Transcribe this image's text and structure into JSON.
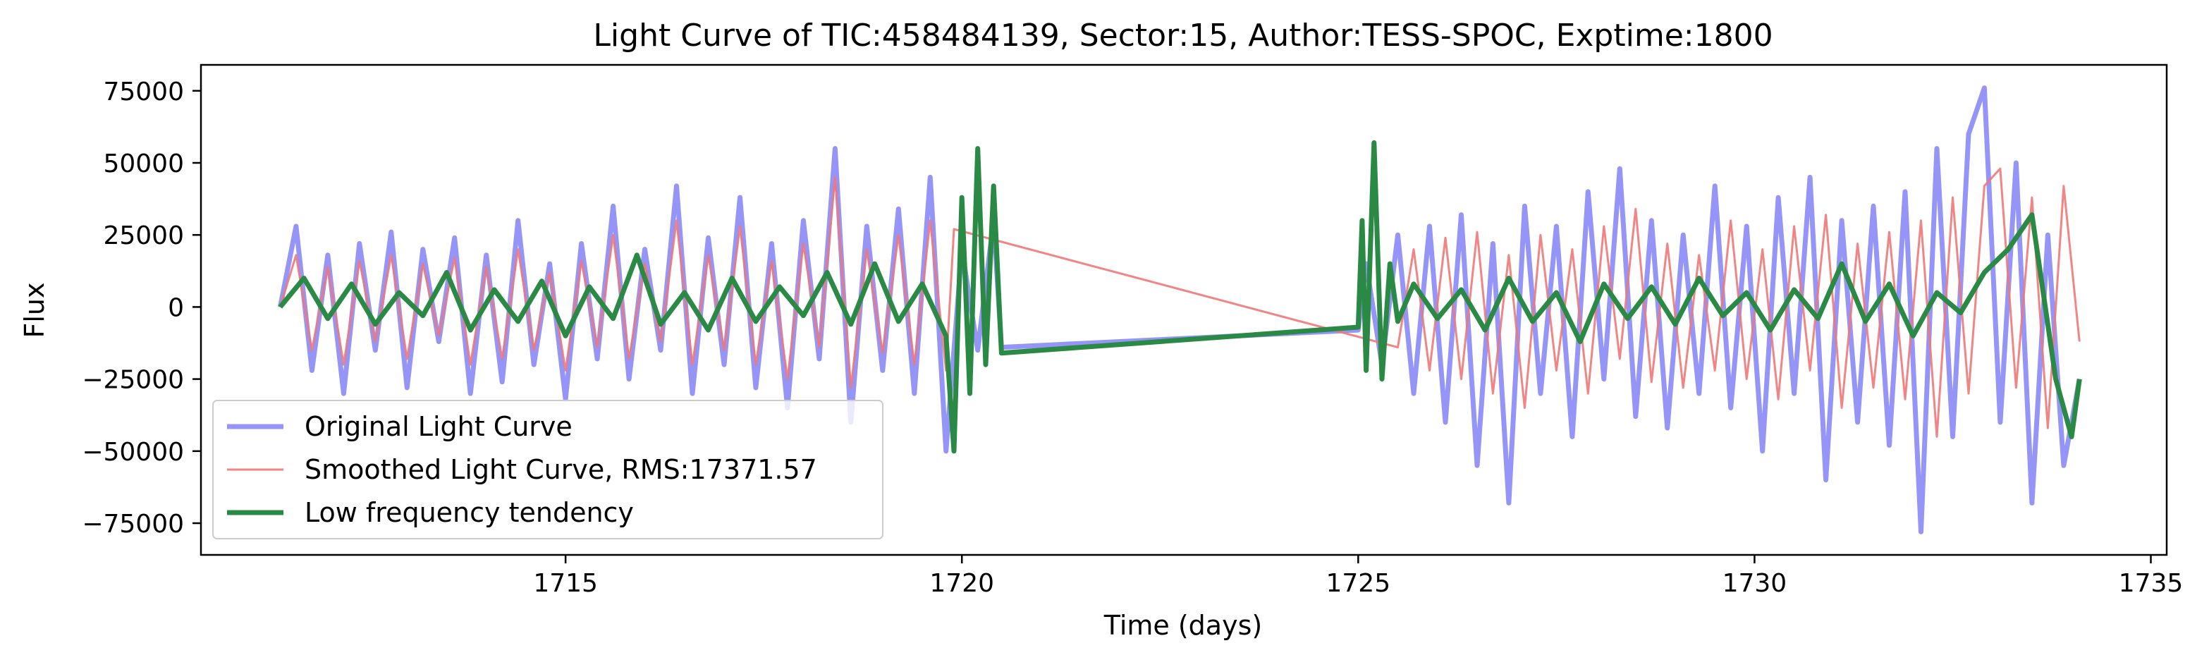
{
  "chart_data": {
    "type": "line",
    "title": "Light Curve of TIC:458484139, Sector:15, Author:TESS-SPOC, Exptime:1800",
    "xlabel": "Time (days)",
    "ylabel": "Flux",
    "xlim": [
      1710.4,
      1735.2
    ],
    "ylim": [
      -86000,
      84000
    ],
    "xticks": [
      1715,
      1720,
      1725,
      1730,
      1735
    ],
    "yticks": [
      -75000,
      -50000,
      -25000,
      0,
      25000,
      50000,
      75000
    ],
    "grid": false,
    "legend_position": "lower-left",
    "series": [
      {
        "name": "Original Light Curve",
        "color": "#7b7bf5",
        "x": [
          1711.4,
          1711.6,
          1711.8,
          1712.0,
          1712.2,
          1712.4,
          1712.6,
          1712.8,
          1713.0,
          1713.2,
          1713.4,
          1713.6,
          1713.8,
          1714.0,
          1714.2,
          1714.4,
          1714.6,
          1714.8,
          1715.0,
          1715.2,
          1715.4,
          1715.6,
          1715.8,
          1716.0,
          1716.2,
          1716.4,
          1716.6,
          1716.8,
          1717.0,
          1717.2,
          1717.4,
          1717.6,
          1717.8,
          1718.0,
          1718.2,
          1718.4,
          1718.6,
          1718.8,
          1719.0,
          1719.2,
          1719.4,
          1719.6,
          1719.8,
          1720.0,
          1720.2,
          1720.4,
          1720.5,
          1725.0,
          1725.1,
          1725.3,
          1725.5,
          1725.7,
          1725.9,
          1726.1,
          1726.3,
          1726.5,
          1726.7,
          1726.9,
          1727.1,
          1727.3,
          1727.5,
          1727.7,
          1727.9,
          1728.1,
          1728.3,
          1728.5,
          1728.7,
          1728.9,
          1729.1,
          1729.3,
          1729.5,
          1729.7,
          1729.9,
          1730.1,
          1730.3,
          1730.5,
          1730.7,
          1730.9,
          1731.1,
          1731.3,
          1731.5,
          1731.7,
          1731.9,
          1732.1,
          1732.3,
          1732.5,
          1732.7,
          1732.9,
          1733.1,
          1733.3,
          1733.5,
          1733.7,
          1733.9,
          1734.1
        ],
        "y": [
          0,
          28000,
          -22000,
          18000,
          -30000,
          22000,
          -15000,
          26000,
          -28000,
          20000,
          -12000,
          24000,
          -30000,
          18000,
          -26000,
          30000,
          -20000,
          15000,
          -32000,
          22000,
          -18000,
          35000,
          -25000,
          20000,
          -15000,
          42000,
          -30000,
          24000,
          -20000,
          38000,
          -28000,
          22000,
          -35000,
          30000,
          -18000,
          55000,
          -40000,
          28000,
          -22000,
          34000,
          -30000,
          45000,
          -50000,
          20000,
          -15000,
          30000,
          -14000,
          -8000,
          15000,
          -20000,
          25000,
          -30000,
          28000,
          -40000,
          32000,
          -55000,
          22000,
          -68000,
          35000,
          -30000,
          28000,
          -45000,
          40000,
          -25000,
          48000,
          -38000,
          30000,
          -42000,
          25000,
          -30000,
          42000,
          -35000,
          28000,
          -50000,
          38000,
          -30000,
          45000,
          -60000,
          30000,
          -40000,
          35000,
          -48000,
          40000,
          -78000,
          55000,
          -45000,
          60000,
          76000,
          -40000,
          50000,
          -68000,
          25000,
          -55000,
          -25000
        ]
      },
      {
        "name": "Smoothed Light Curve, RMS:17371.57",
        "color": "#f07878",
        "x": [
          1711.4,
          1711.6,
          1711.8,
          1712.0,
          1712.2,
          1712.4,
          1712.6,
          1712.8,
          1713.0,
          1713.2,
          1713.4,
          1713.6,
          1713.8,
          1714.0,
          1714.2,
          1714.4,
          1714.6,
          1714.8,
          1715.0,
          1715.2,
          1715.4,
          1715.6,
          1715.8,
          1716.0,
          1716.2,
          1716.4,
          1716.6,
          1716.8,
          1717.0,
          1717.2,
          1717.4,
          1717.6,
          1717.8,
          1718.0,
          1718.2,
          1718.4,
          1718.6,
          1718.8,
          1719.0,
          1719.2,
          1719.4,
          1719.6,
          1719.8,
          1719.9,
          1725.5,
          1725.7,
          1725.9,
          1726.1,
          1726.3,
          1726.5,
          1726.7,
          1726.9,
          1727.1,
          1727.3,
          1727.5,
          1727.7,
          1727.9,
          1728.1,
          1728.3,
          1728.5,
          1728.7,
          1728.9,
          1729.1,
          1729.3,
          1729.5,
          1729.7,
          1729.9,
          1730.1,
          1730.3,
          1730.5,
          1730.7,
          1730.9,
          1731.1,
          1731.3,
          1731.5,
          1731.7,
          1731.9,
          1732.1,
          1732.3,
          1732.5,
          1732.7,
          1732.9,
          1733.1,
          1733.3,
          1733.5,
          1733.7,
          1733.9,
          1734.1
        ],
        "y": [
          0,
          18000,
          -15000,
          14000,
          -20000,
          16000,
          -12000,
          18000,
          -18000,
          15000,
          -10000,
          17000,
          -20000,
          14000,
          -18000,
          20000,
          -15000,
          12000,
          -22000,
          16000,
          -14000,
          25000,
          -18000,
          15000,
          -12000,
          30000,
          -20000,
          18000,
          -15000,
          28000,
          -20000,
          16000,
          -25000,
          22000,
          -14000,
          45000,
          -28000,
          20000,
          -16000,
          25000,
          -20000,
          30000,
          -22000,
          27000,
          -14000,
          20000,
          -22000,
          24000,
          -25000,
          26000,
          -30000,
          18000,
          -35000,
          25000,
          -22000,
          20000,
          -30000,
          28000,
          -18000,
          34000,
          -26000,
          22000,
          -28000,
          18000,
          -22000,
          30000,
          -25000,
          20000,
          -32000,
          28000,
          -22000,
          32000,
          -35000,
          22000,
          -28000,
          26000,
          -32000,
          30000,
          -45000,
          38000,
          -30000,
          42000,
          48000,
          -28000,
          38000,
          -42000,
          42000,
          -12000
        ]
      },
      {
        "name": "Low frequency tendency",
        "color": "#2a8a45",
        "x": [
          1711.4,
          1711.7,
          1712.0,
          1712.3,
          1712.6,
          1712.9,
          1713.2,
          1713.5,
          1713.8,
          1714.1,
          1714.4,
          1714.7,
          1715.0,
          1715.3,
          1715.6,
          1715.9,
          1716.2,
          1716.5,
          1716.8,
          1717.1,
          1717.4,
          1717.7,
          1718.0,
          1718.3,
          1718.6,
          1718.9,
          1719.2,
          1719.5,
          1719.8,
          1719.9,
          1720.0,
          1720.1,
          1720.2,
          1720.3,
          1720.4,
          1720.5,
          1725.0,
          1725.05,
          1725.1,
          1725.2,
          1725.3,
          1725.4,
          1725.5,
          1725.7,
          1726.0,
          1726.3,
          1726.6,
          1726.9,
          1727.2,
          1727.5,
          1727.8,
          1728.1,
          1728.4,
          1728.7,
          1729.0,
          1729.3,
          1729.6,
          1729.9,
          1730.2,
          1730.5,
          1730.8,
          1731.1,
          1731.4,
          1731.7,
          1732.0,
          1732.3,
          1732.6,
          1732.9,
          1733.2,
          1733.5,
          1733.8,
          1734.0,
          1734.1
        ],
        "y": [
          0,
          10000,
          -4000,
          8000,
          -6000,
          5000,
          -3000,
          12000,
          -8000,
          6000,
          -5000,
          9000,
          -10000,
          7000,
          -4000,
          18000,
          -6000,
          5000,
          -8000,
          10000,
          -5000,
          7000,
          -3000,
          12000,
          -6000,
          15000,
          -5000,
          8000,
          -10000,
          -50000,
          38000,
          -30000,
          55000,
          -20000,
          42000,
          -16000,
          -7000,
          30000,
          -22000,
          57000,
          -25000,
          15000,
          -5000,
          8000,
          -4000,
          6000,
          -8000,
          10000,
          -5000,
          5000,
          -12000,
          8000,
          -4000,
          7000,
          -6000,
          10000,
          -3000,
          5000,
          -8000,
          6000,
          -4000,
          15000,
          -5000,
          8000,
          -10000,
          5000,
          -2000,
          12000,
          20000,
          32000,
          -25000,
          -45000,
          -25000
        ]
      }
    ]
  }
}
